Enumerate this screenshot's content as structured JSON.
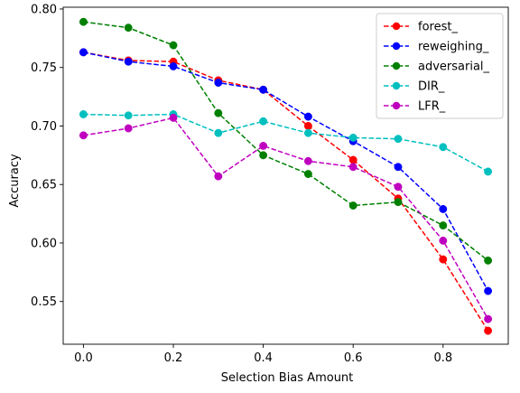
{
  "chart_data": {
    "type": "line",
    "title": "",
    "xlabel": "Selection Bias Amount",
    "ylabel": "Accuracy",
    "xlim": [
      -0.045,
      0.945
    ],
    "ylim": [
      0.5135,
      0.8015
    ],
    "xticks": [
      0.0,
      0.2,
      0.4,
      0.6,
      0.8
    ],
    "xtick_labels": [
      "0.0",
      "0.2",
      "0.4",
      "0.6",
      "0.8"
    ],
    "yticks": [
      0.55,
      0.6,
      0.65,
      0.7,
      0.75,
      0.8
    ],
    "ytick_labels": [
      "0.55",
      "0.60",
      "0.65",
      "0.70",
      "0.75",
      "0.80"
    ],
    "grid": false,
    "legend_position": "top-right",
    "x": [
      0.0,
      0.1,
      0.2,
      0.3,
      0.4,
      0.5,
      0.6,
      0.7,
      0.8,
      0.9
    ],
    "series": [
      {
        "name": "forest_",
        "color": "#ff0000",
        "values": [
          0.763,
          0.756,
          0.755,
          0.739,
          0.731,
          0.7,
          0.671,
          0.638,
          0.586,
          0.525
        ]
      },
      {
        "name": "reweighing_",
        "color": "#0000ff",
        "values": [
          0.763,
          0.755,
          0.751,
          0.737,
          0.731,
          0.708,
          0.687,
          0.665,
          0.629,
          0.559
        ]
      },
      {
        "name": "adversarial_",
        "color": "#008000",
        "values": [
          0.789,
          0.784,
          0.769,
          0.711,
          0.675,
          0.659,
          0.632,
          0.635,
          0.615,
          0.585
        ]
      },
      {
        "name": "DIR_",
        "color": "#00bfbf",
        "values": [
          0.71,
          0.709,
          0.71,
          0.694,
          0.704,
          0.694,
          0.69,
          0.689,
          0.682,
          0.661
        ]
      },
      {
        "name": "LFR_",
        "color": "#bf00bf",
        "values": [
          0.692,
          0.698,
          0.707,
          0.657,
          0.683,
          0.67,
          0.665,
          0.648,
          0.602,
          0.535
        ]
      }
    ]
  }
}
